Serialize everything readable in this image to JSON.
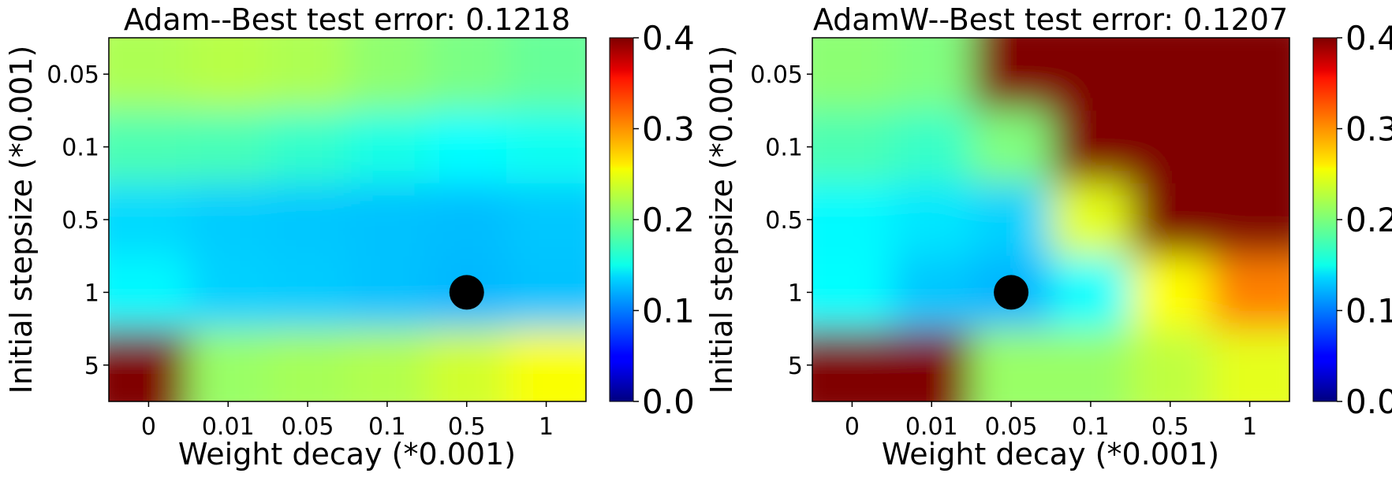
{
  "colormap": "jet",
  "colorbar_ticks": [
    "0.0",
    "0.1",
    "0.2",
    "0.3",
    "0.4"
  ],
  "chart_data": [
    {
      "type": "heatmap",
      "title": "Adam--Best test error: 0.1218",
      "xlabel": "Weight decay (*0.001)",
      "ylabel": "Initial stepsize (*0.001)",
      "x_tick_labels": [
        "0",
        "0.01",
        "0.05",
        "0.1",
        "0.5",
        "1"
      ],
      "y_tick_labels": [
        "0.05",
        "0.1",
        "0.5",
        "1",
        "5"
      ],
      "color_range": [
        0.0,
        0.4
      ],
      "values": [
        [
          0.218,
          0.222,
          0.218,
          0.206,
          0.198,
          0.19
        ],
        [
          0.18,
          0.178,
          0.17,
          0.16,
          0.15,
          0.155
        ],
        [
          0.135,
          0.13,
          0.128,
          0.126,
          0.124,
          0.128
        ],
        [
          0.148,
          0.132,
          0.13,
          0.126,
          0.122,
          0.126
        ],
        [
          0.4,
          0.21,
          0.215,
          0.22,
          0.232,
          0.248
        ]
      ],
      "best_point": {
        "x": "0.5",
        "y": "1",
        "value": 0.1218
      }
    },
    {
      "type": "heatmap",
      "title": "AdamW--Best test error: 0.1207",
      "xlabel": "Weight decay (*0.001)",
      "ylabel": "Initial stepsize (*0.001)",
      "x_tick_labels": [
        "0",
        "0.01",
        "0.05",
        "0.1",
        "0.5",
        "1"
      ],
      "y_tick_labels": [
        "0.05",
        "0.1",
        "0.5",
        "1",
        "5"
      ],
      "color_range": [
        0.0,
        0.4
      ],
      "values": [
        [
          0.205,
          0.2,
          0.4,
          0.4,
          0.4,
          0.4
        ],
        [
          0.18,
          0.172,
          0.2,
          0.4,
          0.4,
          0.4
        ],
        [
          0.148,
          0.14,
          0.132,
          0.24,
          0.4,
          0.4
        ],
        [
          0.15,
          0.128,
          0.121,
          0.15,
          0.25,
          0.3
        ],
        [
          0.4,
          0.4,
          0.21,
          0.21,
          0.225,
          0.24
        ]
      ],
      "best_point": {
        "x": "0.05",
        "y": "1",
        "value": 0.1207
      }
    }
  ]
}
